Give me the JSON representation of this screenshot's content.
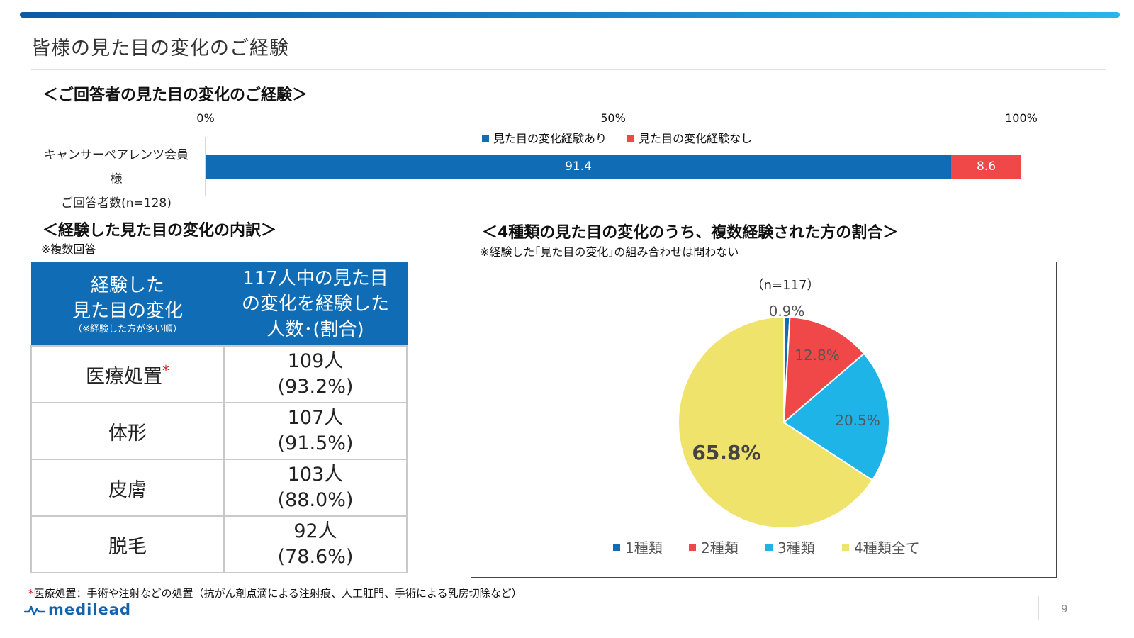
{
  "page": {
    "title": "皆様の見た目の変化のご経験",
    "number": "9"
  },
  "brand": {
    "logo_text": "medilead",
    "color": "#1163b0"
  },
  "section1": {
    "heading": "＜ご回答者の見た目の変化のご経験＞",
    "row_label_line1": "キャンサーペアレンツ会員様",
    "row_label_line2": "ご回答者数(n=128)"
  },
  "section2": {
    "heading": "＜経験した見た目の変化の内訳＞",
    "note": "※複数回答",
    "table": {
      "header_col1_line1": "経験した",
      "header_col1_line2": "見た目の変化",
      "header_col1_sub": "（※経験した方が多い順）",
      "header_col2_line1": "117人中の見た目",
      "header_col2_line2": "の変化を経験した",
      "header_col2_line3": "人数･(割合)",
      "rows": [
        {
          "name": "医療処置",
          "mark": "*",
          "count": "109人",
          "pct": "(93.2%)"
        },
        {
          "name": "体形",
          "mark": "",
          "count": "107人",
          "pct": "(91.5%)"
        },
        {
          "name": "皮膚",
          "mark": "",
          "count": "103人",
          "pct": "(88.0%)"
        },
        {
          "name": "脱毛",
          "mark": "",
          "count": "92人",
          "pct": "(78.6%)"
        }
      ]
    }
  },
  "section3": {
    "heading": "＜4種類の見た目の変化のうち、複数経験された方の割合＞",
    "note": "※経験した｢見た目の変化｣の組み合わせは問わない"
  },
  "footnote": {
    "mark": "*",
    "text": "医療処置：手術や注射などの処置（抗がん剤点滴による注射痕、人工肛門、手術による乳房切除など）"
  },
  "chart_data": [
    {
      "type": "bar",
      "orientation": "horizontal",
      "stacked": true,
      "categories": [
        "キャンサーペアレンツ会員様 ご回答者数(n=128)"
      ],
      "series": [
        {
          "name": "見た目の変化経験あり",
          "values": [
            91.4
          ],
          "color": "#0f6cb5",
          "label": "91.4"
        },
        {
          "name": "見た目の変化経験なし",
          "values": [
            8.6
          ],
          "color": "#f04848",
          "label": "8.6"
        }
      ],
      "xlim": [
        0,
        100
      ],
      "xticks": [
        "0%",
        "50%",
        "100%"
      ],
      "legend_position": "top-center"
    },
    {
      "type": "pie",
      "title": "（n=117）",
      "slices": [
        {
          "name": "1種類",
          "value": 0.9,
          "label": "0.9%",
          "color": "#0f6cb5"
        },
        {
          "name": "2種類",
          "value": 12.8,
          "label": "12.8%",
          "color": "#f04848"
        },
        {
          "name": "3種類",
          "value": 20.5,
          "label": "20.5%",
          "color": "#1fb4e8"
        },
        {
          "name": "4種類全て",
          "value": 65.8,
          "label": "65.8%",
          "color": "#f0e36c"
        }
      ],
      "start_angle": "12 o'clock, clockwise",
      "legend_position": "bottom"
    }
  ]
}
